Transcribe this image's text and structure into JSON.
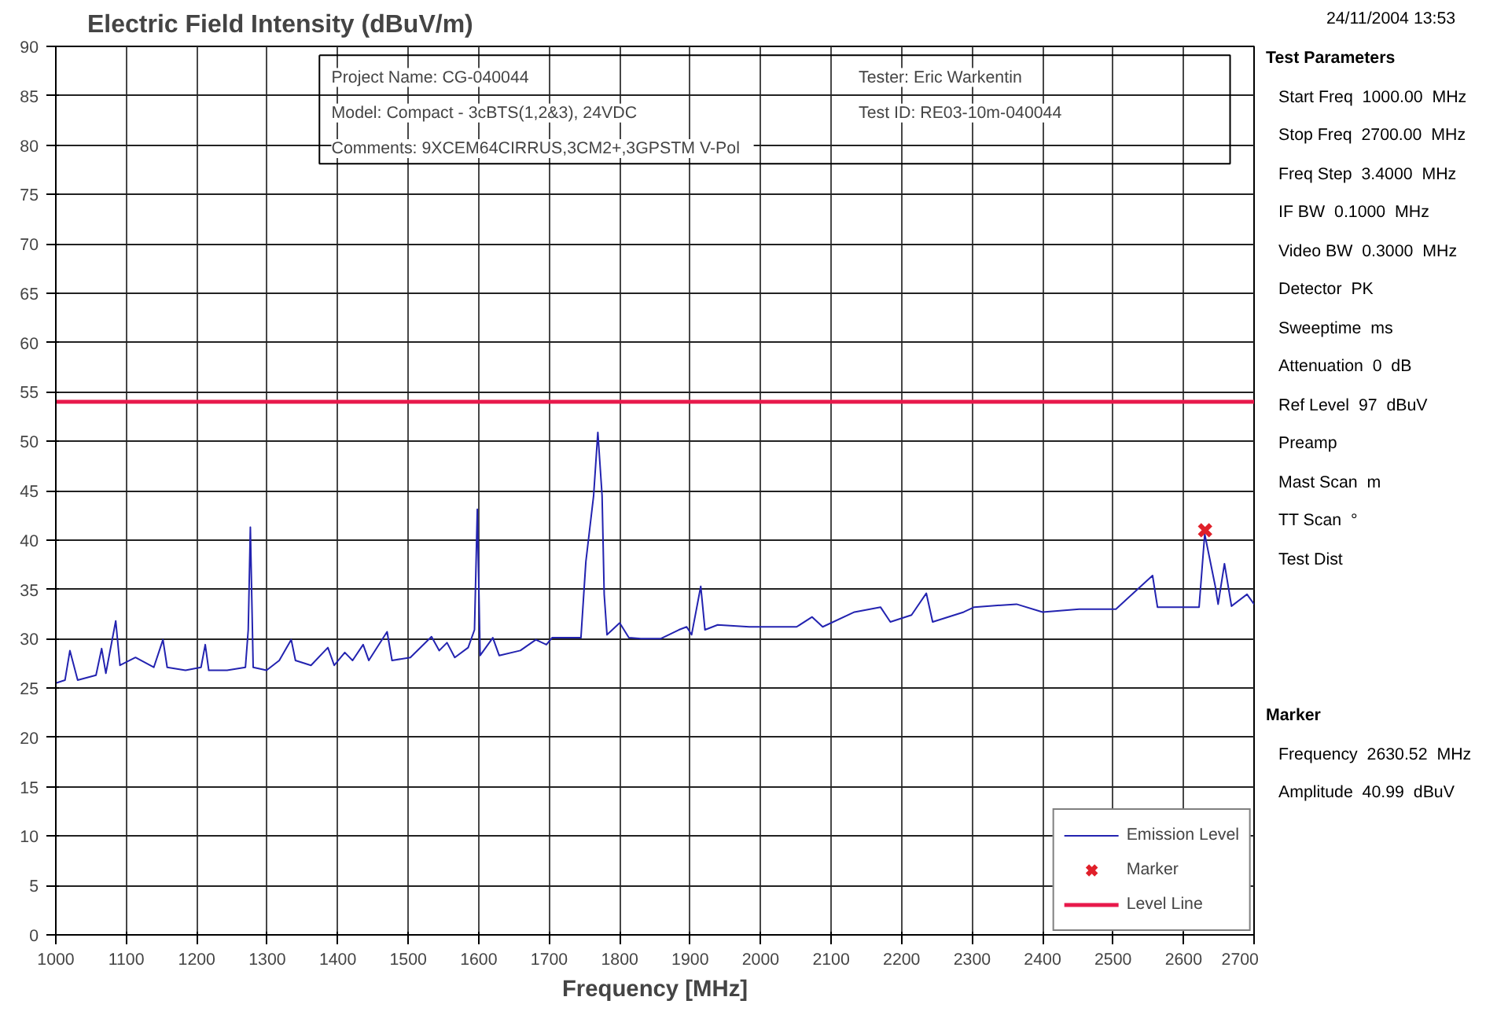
{
  "chart_data": {
    "type": "line",
    "title": "Electric Field Intensity (dBuV/m)",
    "xlabel": "Frequency [MHz]",
    "xlim": [
      1000,
      2700
    ],
    "ylim": [
      0,
      90
    ],
    "xticks": [
      1000,
      1100,
      1200,
      1300,
      1400,
      1500,
      1600,
      1700,
      1800,
      1900,
      2000,
      2100,
      2200,
      2300,
      2400,
      2500,
      2600,
      2700
    ],
    "yticks": [
      0,
      5,
      10,
      15,
      20,
      25,
      30,
      35,
      40,
      45,
      50,
      55,
      60,
      65,
      70,
      75,
      80,
      85,
      90
    ],
    "grid": true,
    "legend": "bottom right",
    "series": [
      {
        "name": "Emission Level",
        "color": "#2323b0",
        "x": [
          1000,
          1013,
          1020,
          1031,
          1057,
          1065,
          1071,
          1085,
          1091,
          1113,
          1139,
          1152,
          1158,
          1184,
          1206,
          1212,
          1217,
          1243,
          1269,
          1273,
          1276,
          1280,
          1299,
          1317,
          1334,
          1340,
          1362,
          1386,
          1395,
          1410,
          1421,
          1436,
          1444,
          1470,
          1477,
          1503,
          1533,
          1544,
          1555,
          1566,
          1585,
          1594,
          1598,
          1602,
          1620,
          1629,
          1659,
          1681,
          1696,
          1704,
          1745,
          1752,
          1763,
          1769,
          1775,
          1778,
          1782,
          1800,
          1813,
          1830,
          1858,
          1884,
          1895,
          1902,
          1915,
          1921,
          1939,
          1984,
          2021,
          2051,
          2073,
          2088,
          2133,
          2170,
          2184,
          2214,
          2235,
          2244,
          2288,
          2303,
          2363,
          2400,
          2452,
          2504,
          2556,
          2563,
          2608,
          2622,
          2630,
          2645,
          2649,
          2658,
          2668,
          2690,
          2700
        ],
        "values": [
          25.5,
          25.8,
          28.8,
          25.8,
          26.3,
          29.0,
          26.5,
          31.8,
          27.3,
          28.1,
          27.1,
          29.9,
          27.1,
          26.8,
          27.1,
          29.4,
          26.8,
          26.8,
          27.1,
          30.9,
          41.3,
          27.1,
          26.8,
          27.8,
          29.9,
          27.8,
          27.3,
          29.1,
          27.3,
          28.6,
          27.8,
          29.4,
          27.8,
          30.7,
          27.8,
          28.1,
          30.2,
          28.8,
          29.6,
          28.1,
          29.1,
          30.9,
          43.1,
          28.3,
          30.1,
          28.3,
          28.8,
          29.9,
          29.4,
          30.1,
          30.1,
          37.8,
          44.5,
          50.9,
          44.5,
          34.5,
          30.4,
          31.6,
          30.1,
          30.0,
          30.0,
          30.9,
          31.2,
          30.4,
          35.3,
          30.9,
          31.4,
          31.2,
          31.2,
          31.2,
          32.2,
          31.2,
          32.7,
          33.2,
          31.7,
          32.4,
          34.6,
          31.7,
          32.7,
          33.2,
          33.5,
          32.7,
          33.0,
          33.0,
          36.4,
          33.2,
          33.2,
          33.2,
          40.6,
          35.3,
          33.5,
          37.6,
          33.3,
          34.5,
          33.5
        ]
      },
      {
        "name": "Marker",
        "type": "scatter",
        "marker": "cross",
        "color": "#e0202a",
        "x": [
          2630.52
        ],
        "values": [
          40.99
        ]
      }
    ],
    "ref_lines": [
      {
        "axis": "y",
        "value": 54,
        "label": "Level Line",
        "color": "#e8194b"
      }
    ],
    "annotations": [
      "24/11/2004   13:53",
      "Project Name:  CG-040044",
      "Model:  Compact - 3cBTS(1,2&3), 24VDC",
      "Comments:  9XCEM64CIRRUS,3CM2+,3GPSTM   V-Pol",
      "Tester:  Eric Warkentin",
      "Test ID:  RE03-10m-040044",
      "Test Parameters",
      "Start Freq  1000.00  MHz",
      "Stop Freq  2700.00  MHz",
      "Freq Step  3.4000  MHz",
      "IF BW  0.1000  MHz",
      "Video BW  0.3000  MHz",
      "Detector  PK",
      "Sweeptime  ms",
      "Attenuation  0  dB",
      "Ref Level  97  dBuV",
      "Preamp",
      "Mast Scan  m",
      "TT Scan  °",
      "Test Dist",
      "Marker",
      "Frequency  2630.52  MHz",
      "Amplitude  40.99  dBuV"
    ]
  }
}
